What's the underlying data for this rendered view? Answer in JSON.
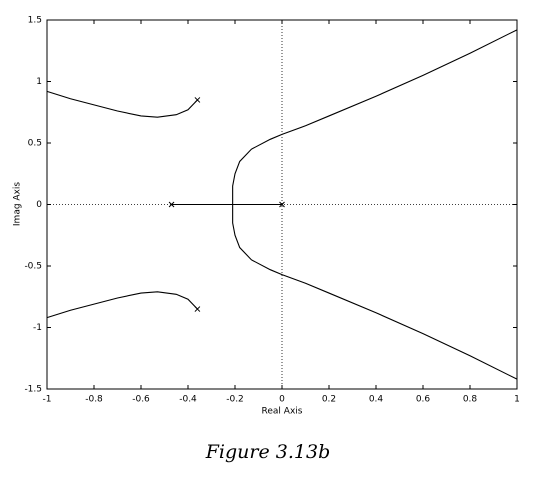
{
  "chart_data": {
    "type": "line",
    "caption": "Figure 3.13b",
    "x_label": "Real Axis",
    "y_label": "Imag Axis",
    "xlim": [
      -1,
      1
    ],
    "xticks": [
      -1,
      -0.8,
      -0.6,
      -0.4,
      -0.2,
      0,
      0.2,
      0.4,
      0.6,
      0.8,
      1
    ],
    "ylim": [
      -1.5,
      1.5
    ],
    "yticks": [
      -1.5,
      -1,
      -0.5,
      0,
      0.5,
      1,
      1.5
    ],
    "origin_lines": "dotted",
    "series": [
      {
        "color": "#000000",
        "x": [
          -0.36,
          -0.4,
          -0.45,
          -0.53,
          -0.6,
          -0.7,
          -0.8,
          -0.9,
          -1
        ],
        "values": [
          0.85,
          0.77,
          0.73,
          0.71,
          0.72,
          0.76,
          0.81,
          0.86,
          0.92
        ]
      },
      {
        "color": "#000000",
        "x": [
          -0.36,
          -0.4,
          -0.45,
          -0.53,
          -0.6,
          -0.7,
          -0.8,
          -0.9,
          -1
        ],
        "values": [
          -0.85,
          -0.77,
          -0.73,
          -0.71,
          -0.72,
          -0.76,
          -0.81,
          -0.86,
          -0.92
        ]
      },
      {
        "color": "#000000",
        "x": [
          -0.47,
          0
        ],
        "values": [
          0,
          0
        ]
      },
      {
        "color": "#000000",
        "x": [
          -0.21,
          -0.21,
          -0.2,
          -0.18,
          -0.13,
          -0.05,
          0,
          0.1,
          0.2,
          0.4,
          0.6,
          0.8,
          1
        ],
        "values": [
          0,
          0.15,
          0.25,
          0.35,
          0.45,
          0.53,
          0.57,
          0.64,
          0.72,
          0.88,
          1.05,
          1.23,
          1.42
        ]
      },
      {
        "color": "#000000",
        "x": [
          -0.21,
          -0.21,
          -0.2,
          -0.18,
          -0.13,
          -0.05,
          0,
          0.1,
          0.2,
          0.4,
          0.6,
          0.8,
          1
        ],
        "values": [
          0,
          -0.15,
          -0.25,
          -0.35,
          -0.45,
          -0.53,
          -0.57,
          -0.64,
          -0.72,
          -0.88,
          -1.05,
          -1.23,
          -1.42
        ]
      },
      {
        "color": "#000000",
        "marker": "x",
        "x": [
          -0.36,
          -0.36,
          -0.47,
          0
        ],
        "values": [
          0.85,
          -0.85,
          0,
          0
        ]
      }
    ]
  }
}
